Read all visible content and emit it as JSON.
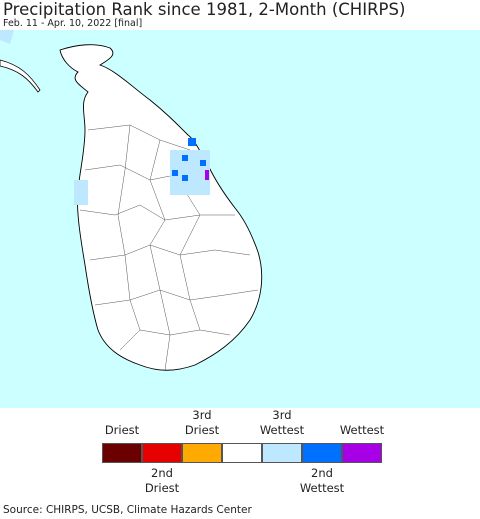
{
  "header": {
    "title": "Precipitation Rank since 1981, 2-Month (CHIRPS)",
    "subtitle": "Feb. 11 - Apr. 10, 2022 [final]"
  },
  "legend": {
    "items": [
      {
        "color": "#6b0000",
        "label": "Driest"
      },
      {
        "color": "#e60000",
        "label": "2nd\nDriest"
      },
      {
        "color": "#ffaa00",
        "label": "3rd\nDriest"
      },
      {
        "color": "#ffffff"
      },
      {
        "color": "#bee8ff",
        "label": "3rd\nWettest"
      },
      {
        "color": "#0070ff",
        "label": "2nd\nWettest"
      },
      {
        "color": "#a800e6",
        "label": "Wettest"
      }
    ]
  },
  "footer": {
    "source": "Source: CHIRPS, UCSB, Climate Hazards Center"
  }
}
